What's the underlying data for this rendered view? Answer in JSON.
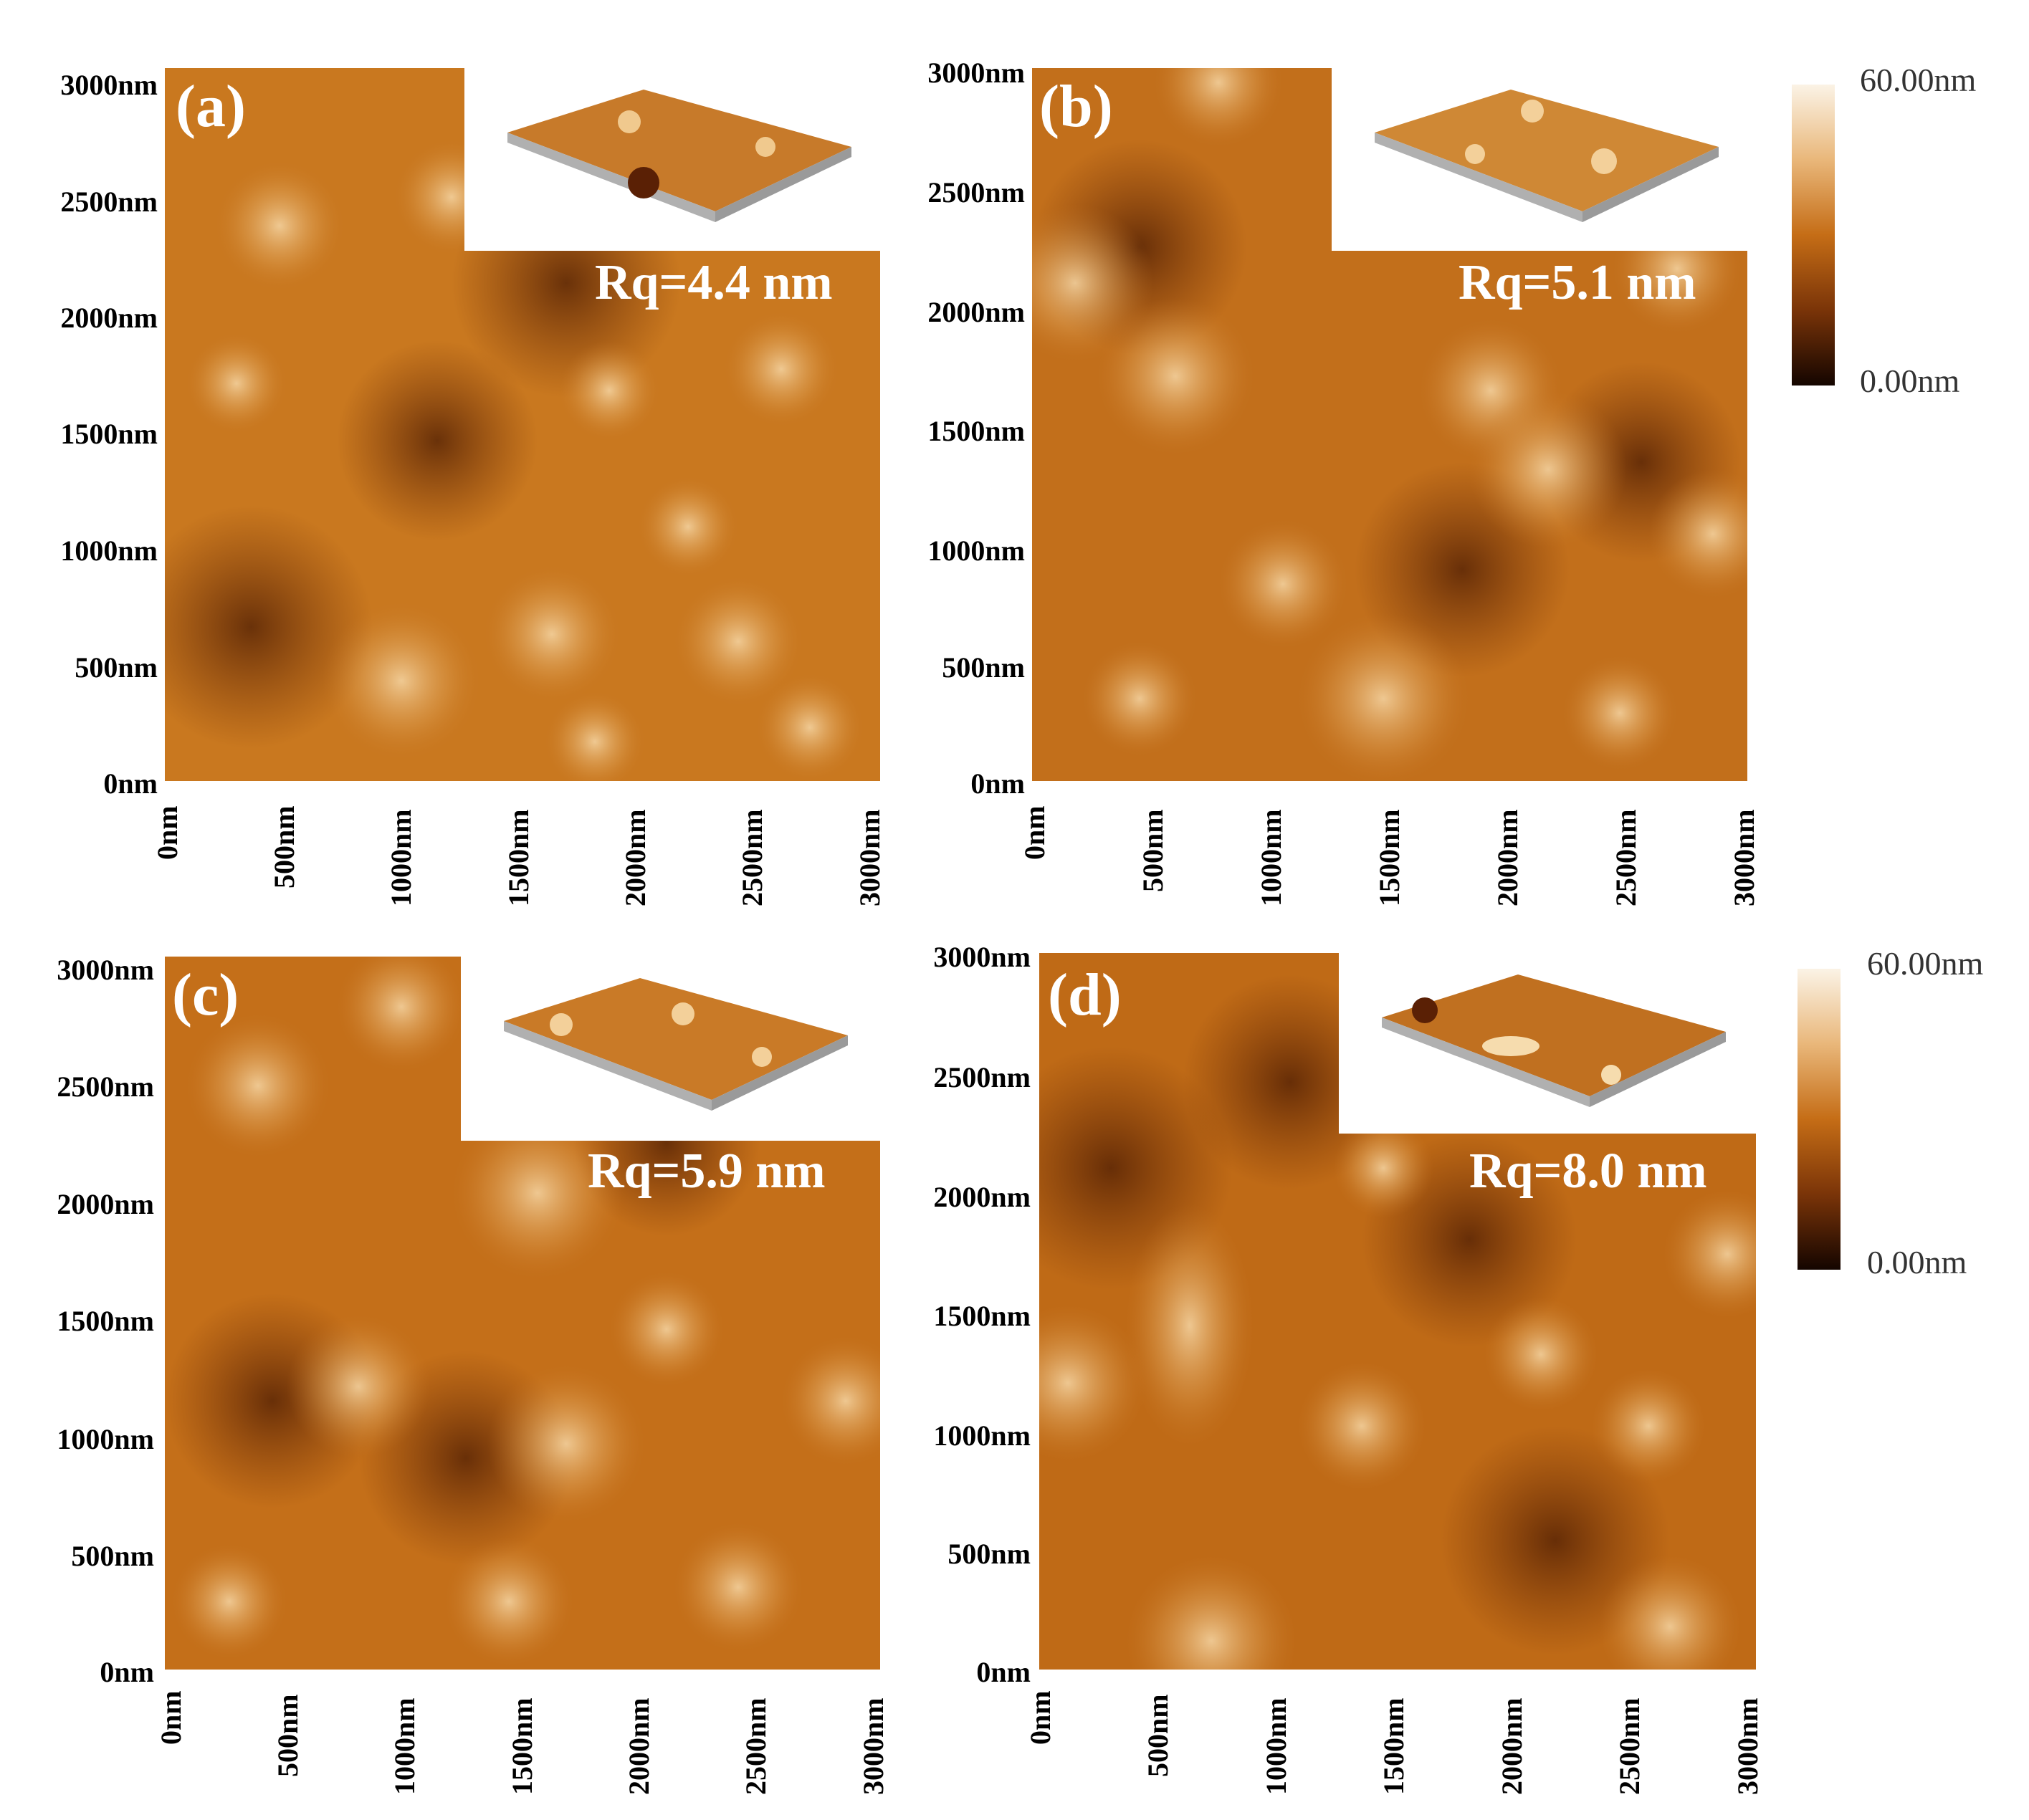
{
  "figure": {
    "panels": [
      {
        "id": "a",
        "label": "(a)",
        "rq": "Rq=4.4 nm"
      },
      {
        "id": "b",
        "label": "(b)",
        "rq": "Rq=5.1 nm"
      },
      {
        "id": "c",
        "label": "(c)",
        "rq": "Rq=5.9 nm"
      },
      {
        "id": "d",
        "label": "(d)",
        "rq": "Rq=8.0 nm"
      }
    ],
    "y_ticks": [
      "3000nm",
      "2500nm",
      "2000nm",
      "1500nm",
      "1000nm",
      "500nm",
      "0nm"
    ],
    "x_ticks": [
      "0nm",
      "500nm",
      "1000nm",
      "1500nm",
      "2000nm",
      "2500nm",
      "3000nm"
    ],
    "colorbar": {
      "max_label": "60.00nm",
      "min_label": "0.00nm"
    },
    "colors": {
      "dark": "#3a1300",
      "mid": "#c06a12",
      "light": "#fbeedb"
    }
  }
}
